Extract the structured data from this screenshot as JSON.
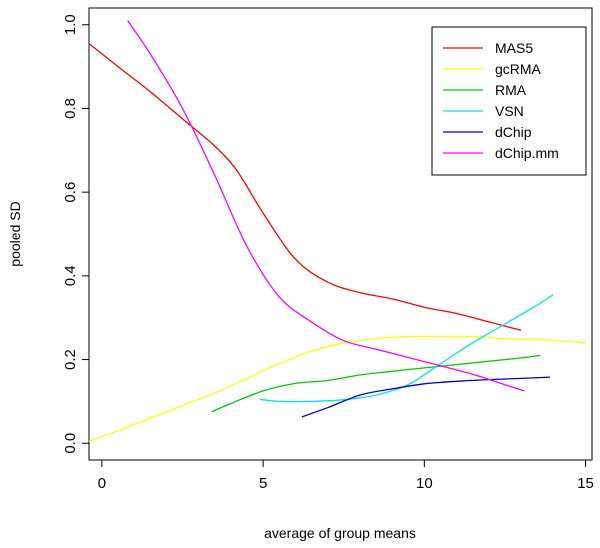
{
  "chart_data": {
    "type": "line",
    "title": "",
    "xlabel": "average of group means",
    "ylabel": "pooled SD",
    "xlim": [
      -0.4,
      15.2
    ],
    "ylim": [
      -0.04,
      1.04
    ],
    "xticks": [
      0,
      5,
      10,
      15
    ],
    "yticks": [
      0.0,
      0.2,
      0.4,
      0.6,
      0.8,
      1.0
    ],
    "xtick_labels": [
      "0",
      "5",
      "10",
      "15"
    ],
    "ytick_labels": [
      "0.0",
      "0.2",
      "0.4",
      "0.6",
      "0.8",
      "1.0"
    ],
    "grid": false,
    "legend_position": "top-right",
    "series": [
      {
        "name": "MAS5",
        "color": "#ff0000",
        "x": [
          -0.4,
          0.5,
          1.5,
          2.5,
          3.5,
          4.2,
          5.0,
          6.0,
          7.0,
          8.0,
          9.0,
          10.0,
          11.0,
          12.0,
          13.0
        ],
        "y": [
          0.955,
          0.9,
          0.84,
          0.775,
          0.71,
          0.65,
          0.55,
          0.44,
          0.385,
          0.36,
          0.345,
          0.325,
          0.31,
          0.29,
          0.27
        ]
      },
      {
        "name": "gcRMA",
        "color": "#ffff00",
        "x": [
          -0.4,
          0.5,
          1.5,
          2.5,
          3.5,
          4.5,
          5.5,
          6.5,
          7.5,
          8.5,
          9.5,
          10.5,
          11.5,
          12.5,
          13.5,
          14.5,
          15.0
        ],
        "y": [
          0.005,
          0.03,
          0.06,
          0.09,
          0.12,
          0.155,
          0.19,
          0.22,
          0.24,
          0.25,
          0.255,
          0.255,
          0.255,
          0.25,
          0.248,
          0.243,
          0.24
        ]
      },
      {
        "name": "RMA",
        "color": "#00cc00",
        "x": [
          3.4,
          4.0,
          5.0,
          6.0,
          7.0,
          8.0,
          9.0,
          10.0,
          11.0,
          12.0,
          13.0,
          13.6
        ],
        "y": [
          0.075,
          0.095,
          0.125,
          0.143,
          0.15,
          0.163,
          0.172,
          0.18,
          0.188,
          0.196,
          0.204,
          0.21
        ]
      },
      {
        "name": "VSN",
        "color": "#00e5e5",
        "x": [
          4.9,
          5.5,
          6.5,
          7.5,
          8.5,
          9.5,
          10.5,
          11.5,
          12.5,
          13.5,
          14.0
        ],
        "y": [
          0.105,
          0.1,
          0.1,
          0.104,
          0.115,
          0.14,
          0.19,
          0.24,
          0.285,
          0.33,
          0.355
        ]
      },
      {
        "name": "dChip",
        "color": "#0000cc",
        "x": [
          6.2,
          7.0,
          8.0,
          9.0,
          10.0,
          11.0,
          12.0,
          13.0,
          13.9
        ],
        "y": [
          0.063,
          0.085,
          0.115,
          0.13,
          0.142,
          0.148,
          0.152,
          0.155,
          0.158
        ]
      },
      {
        "name": "dChip.mm",
        "color": "#ff00ff",
        "x": [
          0.8,
          1.5,
          2.5,
          3.5,
          4.5,
          5.5,
          6.5,
          7.5,
          8.5,
          9.5,
          10.5,
          11.5,
          12.5,
          13.1
        ],
        "y": [
          1.01,
          0.93,
          0.8,
          0.64,
          0.47,
          0.35,
          0.29,
          0.245,
          0.225,
          0.205,
          0.185,
          0.165,
          0.14,
          0.125
        ]
      }
    ]
  }
}
